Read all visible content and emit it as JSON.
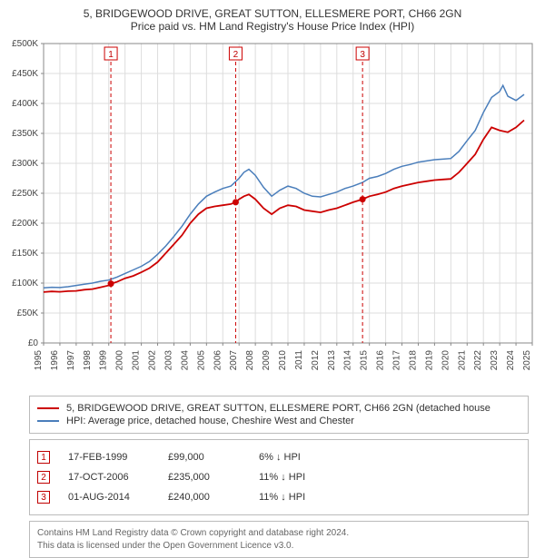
{
  "title": "5, BRIDGEWOOD DRIVE, GREAT SUTTON, ELLESMERE PORT, CH66 2GN",
  "subtitle": "Price paid vs. HM Land Registry's House Price Index (HPI)",
  "chart": {
    "type": "line",
    "background_color": "#ffffff",
    "grid_color": "#dddddd",
    "axis_color": "#888888",
    "tick_font_size": 10,
    "tick_color": "#444444",
    "x": {
      "min": 1995,
      "max": 2025,
      "tick_step": 1,
      "labels": [
        "1995",
        "1996",
        "1997",
        "1998",
        "1999",
        "2000",
        "2001",
        "2002",
        "2003",
        "2004",
        "2005",
        "2006",
        "2007",
        "2008",
        "2009",
        "2010",
        "2011",
        "2012",
        "2013",
        "2014",
        "2015",
        "2016",
        "2017",
        "2018",
        "2019",
        "2020",
        "2021",
        "2022",
        "2023",
        "2024",
        "2025"
      ]
    },
    "y": {
      "min": 0,
      "max": 500000,
      "tick_step": 50000,
      "prefix": "£",
      "suffix": "K",
      "labels": [
        "£0",
        "£50K",
        "£100K",
        "£150K",
        "£200K",
        "£250K",
        "£300K",
        "£350K",
        "£400K",
        "£450K",
        "£500K"
      ]
    },
    "series": [
      {
        "name": "price_paid",
        "color": "#cc0000",
        "line_width": 1.8,
        "values": [
          [
            1995.0,
            85000
          ],
          [
            1995.5,
            86000
          ],
          [
            1996.0,
            85500
          ],
          [
            1996.5,
            86500
          ],
          [
            1997.0,
            87000
          ],
          [
            1997.5,
            89000
          ],
          [
            1998.0,
            90000
          ],
          [
            1998.5,
            93000
          ],
          [
            1999.0,
            96000
          ],
          [
            1999.13,
            99000
          ],
          [
            1999.5,
            102000
          ],
          [
            2000.0,
            108000
          ],
          [
            2000.5,
            112000
          ],
          [
            2001.0,
            118000
          ],
          [
            2001.5,
            125000
          ],
          [
            2002.0,
            135000
          ],
          [
            2002.5,
            150000
          ],
          [
            2003.0,
            165000
          ],
          [
            2003.5,
            180000
          ],
          [
            2004.0,
            200000
          ],
          [
            2004.5,
            215000
          ],
          [
            2005.0,
            225000
          ],
          [
            2005.5,
            228000
          ],
          [
            2006.0,
            230000
          ],
          [
            2006.5,
            232000
          ],
          [
            2006.79,
            235000
          ],
          [
            2007.0,
            240000
          ],
          [
            2007.3,
            245000
          ],
          [
            2007.6,
            248000
          ],
          [
            2008.0,
            240000
          ],
          [
            2008.5,
            225000
          ],
          [
            2009.0,
            215000
          ],
          [
            2009.5,
            225000
          ],
          [
            2010.0,
            230000
          ],
          [
            2010.5,
            228000
          ],
          [
            2011.0,
            222000
          ],
          [
            2011.5,
            220000
          ],
          [
            2012.0,
            218000
          ],
          [
            2012.5,
            222000
          ],
          [
            2013.0,
            225000
          ],
          [
            2013.5,
            230000
          ],
          [
            2014.0,
            235000
          ],
          [
            2014.58,
            240000
          ],
          [
            2015.0,
            245000
          ],
          [
            2015.5,
            248000
          ],
          [
            2016.0,
            252000
          ],
          [
            2016.5,
            258000
          ],
          [
            2017.0,
            262000
          ],
          [
            2017.5,
            265000
          ],
          [
            2018.0,
            268000
          ],
          [
            2018.5,
            270000
          ],
          [
            2019.0,
            272000
          ],
          [
            2019.5,
            273000
          ],
          [
            2020.0,
            274000
          ],
          [
            2020.5,
            285000
          ],
          [
            2021.0,
            300000
          ],
          [
            2021.5,
            315000
          ],
          [
            2022.0,
            340000
          ],
          [
            2022.5,
            360000
          ],
          [
            2023.0,
            355000
          ],
          [
            2023.5,
            352000
          ],
          [
            2024.0,
            360000
          ],
          [
            2024.5,
            372000
          ]
        ]
      },
      {
        "name": "hpi",
        "color": "#4a7ebb",
        "line_width": 1.5,
        "values": [
          [
            1995.0,
            92000
          ],
          [
            1995.5,
            93000
          ],
          [
            1996.0,
            92500
          ],
          [
            1996.5,
            94000
          ],
          [
            1997.0,
            96000
          ],
          [
            1997.5,
            98000
          ],
          [
            1998.0,
            100000
          ],
          [
            1998.5,
            103000
          ],
          [
            1999.0,
            105000
          ],
          [
            1999.5,
            110000
          ],
          [
            2000.0,
            116000
          ],
          [
            2000.5,
            122000
          ],
          [
            2001.0,
            128000
          ],
          [
            2001.5,
            136000
          ],
          [
            2002.0,
            148000
          ],
          [
            2002.5,
            162000
          ],
          [
            2003.0,
            178000
          ],
          [
            2003.5,
            195000
          ],
          [
            2004.0,
            215000
          ],
          [
            2004.5,
            232000
          ],
          [
            2005.0,
            245000
          ],
          [
            2005.5,
            252000
          ],
          [
            2006.0,
            258000
          ],
          [
            2006.5,
            262000
          ],
          [
            2007.0,
            275000
          ],
          [
            2007.3,
            285000
          ],
          [
            2007.6,
            290000
          ],
          [
            2008.0,
            280000
          ],
          [
            2008.5,
            260000
          ],
          [
            2009.0,
            245000
          ],
          [
            2009.5,
            255000
          ],
          [
            2010.0,
            262000
          ],
          [
            2010.5,
            258000
          ],
          [
            2011.0,
            250000
          ],
          [
            2011.5,
            245000
          ],
          [
            2012.0,
            244000
          ],
          [
            2012.5,
            248000
          ],
          [
            2013.0,
            252000
          ],
          [
            2013.5,
            258000
          ],
          [
            2014.0,
            262000
          ],
          [
            2014.58,
            268000
          ],
          [
            2015.0,
            275000
          ],
          [
            2015.5,
            278000
          ],
          [
            2016.0,
            283000
          ],
          [
            2016.5,
            290000
          ],
          [
            2017.0,
            295000
          ],
          [
            2017.5,
            298000
          ],
          [
            2018.0,
            302000
          ],
          [
            2018.5,
            304000
          ],
          [
            2019.0,
            306000
          ],
          [
            2019.5,
            307000
          ],
          [
            2020.0,
            308000
          ],
          [
            2020.5,
            320000
          ],
          [
            2021.0,
            338000
          ],
          [
            2021.5,
            355000
          ],
          [
            2022.0,
            385000
          ],
          [
            2022.5,
            410000
          ],
          [
            2023.0,
            420000
          ],
          [
            2023.2,
            430000
          ],
          [
            2023.5,
            412000
          ],
          [
            2024.0,
            405000
          ],
          [
            2024.5,
            415000
          ]
        ]
      }
    ],
    "sale_markers": {
      "color": "#cc0000",
      "dash": "4,3",
      "box_fill": "#ffffff",
      "label_color": "#c00000",
      "points": [
        {
          "n": "1",
          "x": 1999.13,
          "y": 99000
        },
        {
          "n": "2",
          "x": 2006.79,
          "y": 235000
        },
        {
          "n": "3",
          "x": 2014.58,
          "y": 240000
        }
      ]
    }
  },
  "legend": {
    "items": [
      {
        "color": "#cc0000",
        "label": "5, BRIDGEWOOD DRIVE, GREAT SUTTON, ELLESMERE PORT, CH66 2GN (detached house"
      },
      {
        "color": "#4a7ebb",
        "label": "HPI: Average price, detached house, Cheshire West and Chester"
      }
    ]
  },
  "events": {
    "rows": [
      {
        "n": "1",
        "date": "17-FEB-1999",
        "price": "£99,000",
        "hpi": "6% ↓ HPI"
      },
      {
        "n": "2",
        "date": "17-OCT-2006",
        "price": "£235,000",
        "hpi": "11% ↓ HPI"
      },
      {
        "n": "3",
        "date": "01-AUG-2014",
        "price": "£240,000",
        "hpi": "11% ↓ HPI"
      }
    ]
  },
  "footer": {
    "line1": "Contains HM Land Registry data © Crown copyright and database right 2024.",
    "line2": "This data is licensed under the Open Government Licence v3.0."
  }
}
